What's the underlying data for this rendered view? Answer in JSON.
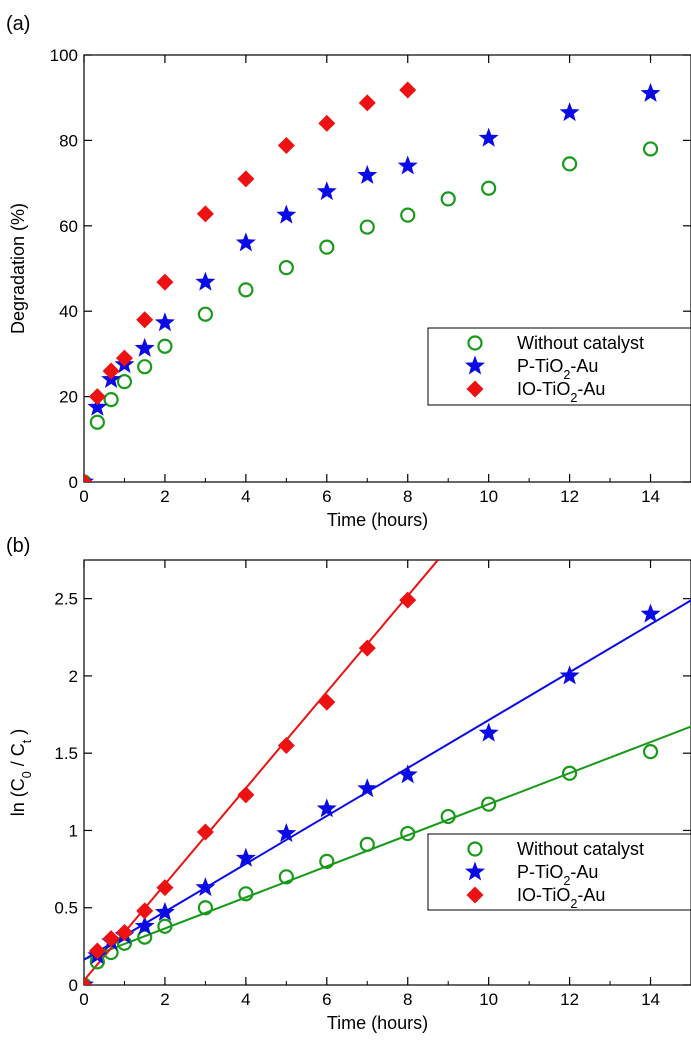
{
  "chart_data": [
    {
      "panel": "(a)",
      "type": "scatter",
      "xlabel": "Time (hours)",
      "ylabel": "Degradation (%)",
      "xlim": [
        0,
        15
      ],
      "ylim": [
        0,
        100
      ],
      "xticks": [
        0,
        2,
        4,
        6,
        8,
        10,
        12,
        14
      ],
      "yticks": [
        0,
        20,
        40,
        60,
        80,
        100
      ],
      "grid": false,
      "legend_position": "bottom-right",
      "series": [
        {
          "name": "Without catalyst",
          "marker": "circle-open",
          "color": "#1a9a1a",
          "x": [
            0,
            0.33,
            0.67,
            1,
            1.5,
            2,
            3,
            4,
            5,
            6,
            7,
            8,
            9,
            10,
            12,
            14
          ],
          "y": [
            0,
            14,
            19.3,
            23.5,
            27,
            31.8,
            39.3,
            45,
            50.2,
            55,
            59.7,
            62.5,
            66.3,
            68.8,
            74.5,
            78
          ]
        },
        {
          "name": "P-TiO2-Au",
          "marker": "star",
          "color": "#0a0ae6",
          "x": [
            0,
            0.33,
            0.67,
            1,
            1.5,
            2,
            3,
            4,
            5,
            6,
            7,
            8,
            10,
            12,
            14
          ],
          "y": [
            0,
            17.5,
            24,
            27.5,
            31.3,
            37.3,
            46.8,
            56,
            62.5,
            68,
            71.8,
            74,
            80.5,
            86.5,
            91
          ]
        },
        {
          "name": "IO-TiO2-Au",
          "marker": "diamond",
          "color": "#ee1111",
          "x": [
            0,
            0.33,
            0.67,
            1,
            1.5,
            2,
            3,
            4,
            5,
            6,
            7,
            8
          ],
          "y": [
            0,
            20,
            26,
            29,
            38,
            46.8,
            62.8,
            71,
            78.8,
            84,
            88.8,
            91.8
          ]
        }
      ]
    },
    {
      "panel": "(b)",
      "type": "scatter",
      "xlabel": "Time (hours)",
      "ylabel": "ln (C0 / Ct )",
      "xlim": [
        0,
        15
      ],
      "ylim": [
        0,
        2.75
      ],
      "xticks": [
        0,
        2,
        4,
        6,
        8,
        10,
        12,
        14
      ],
      "yticks": [
        0,
        0.5,
        1,
        1.5,
        2,
        2.5
      ],
      "ytick_labels": [
        "0",
        "0.5",
        "1",
        "1.5",
        "2",
        "2.5"
      ],
      "grid": false,
      "legend_position": "bottom-right",
      "series": [
        {
          "name": "Without catalyst",
          "marker": "circle-open",
          "color": "#1a9a1a",
          "x": [
            0,
            0.33,
            0.67,
            1,
            1.5,
            2,
            3,
            4,
            5,
            6,
            7,
            8,
            9,
            10,
            12,
            14
          ],
          "y": [
            0,
            0.15,
            0.21,
            0.27,
            0.31,
            0.38,
            0.5,
            0.59,
            0.7,
            0.8,
            0.91,
            0.98,
            1.09,
            1.17,
            1.37,
            1.51
          ],
          "fit": {
            "slope": 0.1005,
            "intercept": 0.165,
            "x_range": [
              0,
              15
            ]
          }
        },
        {
          "name": "P-TiO2-Au",
          "marker": "star",
          "color": "#0a0ae6",
          "x": [
            0,
            0.33,
            0.67,
            1,
            1.5,
            2,
            3,
            4,
            5,
            6,
            7,
            8,
            10,
            12,
            14
          ],
          "y": [
            0,
            0.19,
            0.28,
            0.32,
            0.38,
            0.47,
            0.63,
            0.82,
            0.98,
            1.14,
            1.27,
            1.36,
            1.63,
            2,
            2.4
          ],
          "fit": {
            "slope": 0.155,
            "intercept": 0.164,
            "x_range": [
              0,
              15
            ]
          }
        },
        {
          "name": "IO-TiO2-Au",
          "marker": "diamond",
          "color": "#ee1111",
          "x": [
            0,
            0.33,
            0.67,
            1,
            1.5,
            2,
            3,
            4,
            5,
            6,
            7,
            8
          ],
          "y": [
            0,
            0.22,
            0.3,
            0.34,
            0.48,
            0.63,
            0.99,
            1.23,
            1.55,
            1.83,
            2.18,
            2.49
          ],
          "fit": {
            "slope": 0.311,
            "intercept": 0.03,
            "x_range": [
              0,
              8.75
            ]
          }
        }
      ]
    }
  ]
}
